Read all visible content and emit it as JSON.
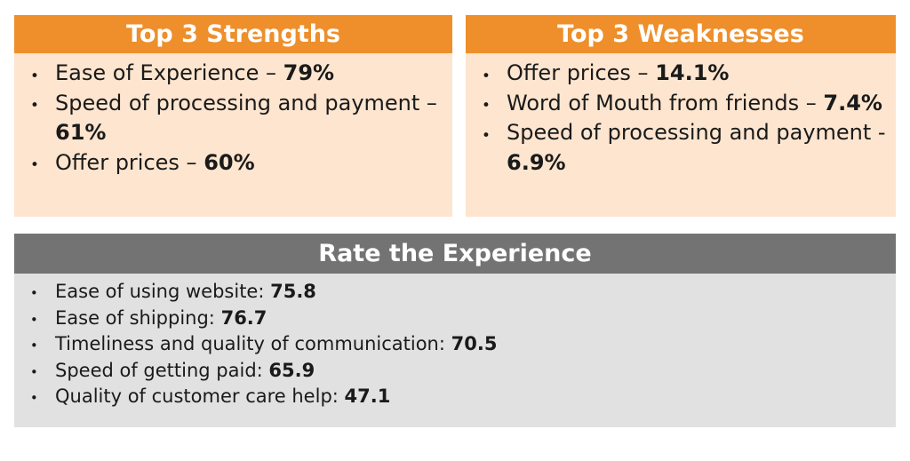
{
  "strengths": {
    "title": "Top 3 Strengths",
    "items": [
      {
        "label": "Ease of Experience –",
        "value": "79%"
      },
      {
        "label": "Speed of processing and payment –",
        "value": "61%"
      },
      {
        "label": "Offer prices –",
        "value": "60%"
      }
    ]
  },
  "weaknesses": {
    "title": "Top 3 Weaknesses",
    "items": [
      {
        "label": "Offer prices –",
        "value": "14.1%"
      },
      {
        "label": "Word of Mouth from friends –",
        "value": "7.4%"
      },
      {
        "label": "Speed of processing and payment -",
        "value": "6.9%"
      }
    ]
  },
  "rating": {
    "title": "Rate the Experience",
    "items": [
      {
        "label": "Ease of using website:",
        "value": "75.8"
      },
      {
        "label": "Ease of shipping:",
        "value": "76.7"
      },
      {
        "label": "Timeliness and quality of communication:",
        "value": "70.5"
      },
      {
        "label": "Speed of getting paid:",
        "value": "65.9"
      },
      {
        "label": "Quality of customer care help:",
        "value": "47.1"
      }
    ]
  }
}
